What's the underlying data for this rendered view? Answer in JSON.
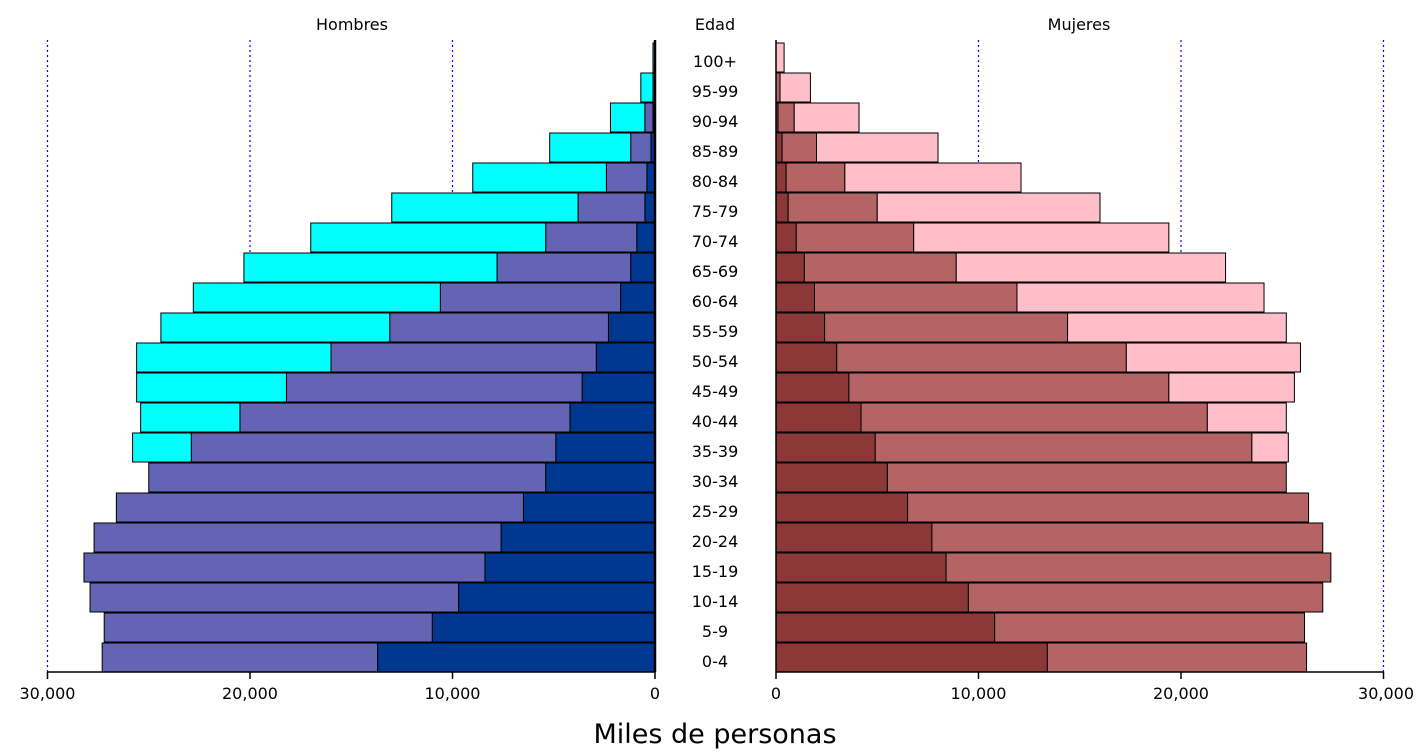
{
  "chart_data": {
    "type": "bar",
    "headers": {
      "left": "Hombres",
      "center": "Edad",
      "right": "Mujeres"
    },
    "xlabel": "Miles de personas",
    "xlim": [
      0,
      30000
    ],
    "x_ticks": [
      0,
      10000,
      20000,
      30000
    ],
    "x_tick_labels_left": [
      "30,000",
      "20,000",
      "10,000",
      "0"
    ],
    "x_tick_labels_right": [
      "0",
      "10,000",
      "20,000",
      "30,000"
    ],
    "grid": "vertical dotted lines at 10,000, 20,000 and 30,000",
    "categories": [
      "0-4",
      "5-9",
      "10-14",
      "15-19",
      "20-24",
      "25-29",
      "30-34",
      "35-39",
      "40-44",
      "45-49",
      "50-54",
      "55-59",
      "60-64",
      "65-69",
      "70-74",
      "75-79",
      "80-84",
      "85-89",
      "90-94",
      "95-99",
      "100+"
    ],
    "sides": [
      {
        "side": "left",
        "series": [
          {
            "color": "#003891",
            "values": [
              13700,
              11000,
              9700,
              8400,
              7600,
              6500,
              5400,
              4900,
              4200,
              3600,
              2900,
              2300,
              1700,
              1200,
              900,
              500,
              400,
              200,
              100,
              0,
              0
            ]
          },
          {
            "color": "#6464b4",
            "values": [
              13600,
              16200,
              18200,
              19800,
              20100,
              20100,
              19600,
              18000,
              16300,
              14600,
              13100,
              10800,
              8900,
              6600,
              4500,
              3300,
              2000,
              1000,
              400,
              100,
              0
            ]
          },
          {
            "color": "#00ffff",
            "values": [
              0,
              0,
              0,
              0,
              0,
              0,
              0,
              2900,
              4900,
              7400,
              9600,
              11300,
              12200,
              12500,
              11600,
              9200,
              6600,
              4000,
              1700,
              600,
              100
            ]
          }
        ]
      },
      {
        "side": "right",
        "series": [
          {
            "color": "#8c3838",
            "values": [
              13400,
              10800,
              9500,
              8400,
              7700,
              6500,
              5500,
              4900,
              4200,
              3600,
              3000,
              2400,
              1900,
              1400,
              1000,
              600,
              500,
              300,
              100,
              0,
              0
            ]
          },
          {
            "color": "#b46464",
            "values": [
              12800,
              15300,
              17500,
              19000,
              19300,
              19800,
              19700,
              18600,
              17100,
              15800,
              14300,
              12000,
              10000,
              7500,
              5800,
              4400,
              2900,
              1700,
              800,
              200,
              0
            ]
          },
          {
            "color": "#ffbec8",
            "values": [
              0,
              0,
              0,
              0,
              0,
              0,
              0,
              1800,
              3900,
              6200,
              8600,
              10800,
              12200,
              13300,
              12600,
              11000,
              8700,
              6000,
              3200,
              1500,
              400
            ]
          }
        ]
      }
    ],
    "colors": {
      "grid": "#0000ff",
      "bar_border": "#000000",
      "axis": "#000000"
    }
  }
}
